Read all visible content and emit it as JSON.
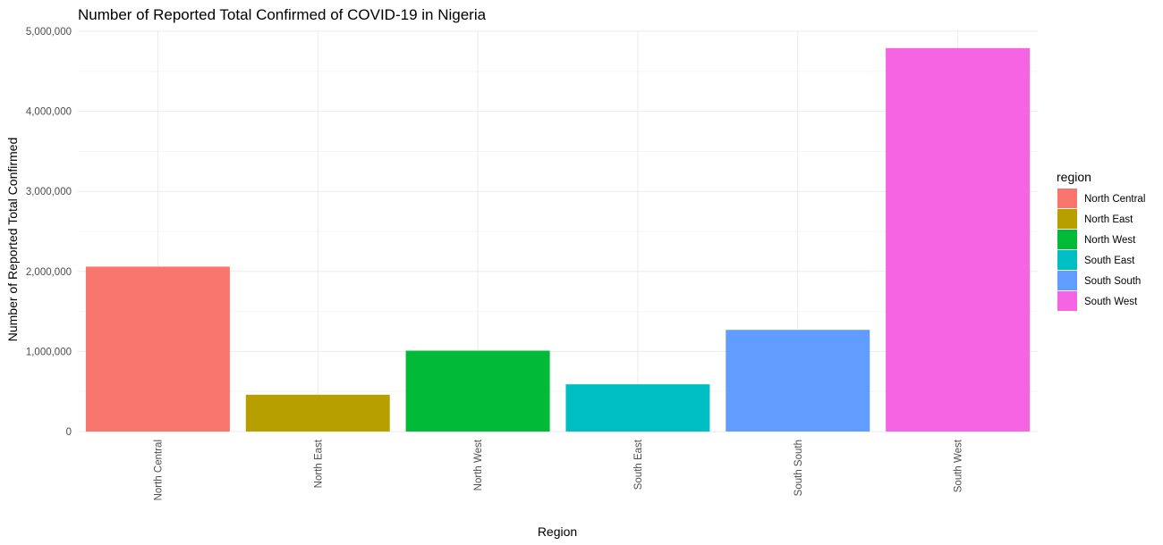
{
  "chart_data": {
    "type": "bar",
    "title": "Number of Reported Total Confirmed of COVID-19 in Nigeria",
    "xlabel": "Region",
    "ylabel": "Number of Reported Total Confirmed",
    "categories": [
      "North Central",
      "North East",
      "North West",
      "South East",
      "South South",
      "South West"
    ],
    "values": [
      2060000,
      460000,
      1010000,
      590000,
      1270000,
      4790000
    ],
    "colors": [
      "#F8766D",
      "#B79F00",
      "#00BA38",
      "#00BFC4",
      "#619CFF",
      "#F564E3"
    ],
    "ylim": [
      0,
      5000000
    ],
    "yticks": [
      0,
      1000000,
      2000000,
      3000000,
      4000000,
      5000000
    ],
    "ytick_labels": [
      "0",
      "1,000,000",
      "2,000,000",
      "3,000,000",
      "4,000,000",
      "5,000,000"
    ],
    "grid": true,
    "legend": {
      "title": "region",
      "placement": "right",
      "entries": [
        "North Central",
        "North East",
        "North West",
        "South East",
        "South South",
        "South West"
      ]
    }
  }
}
